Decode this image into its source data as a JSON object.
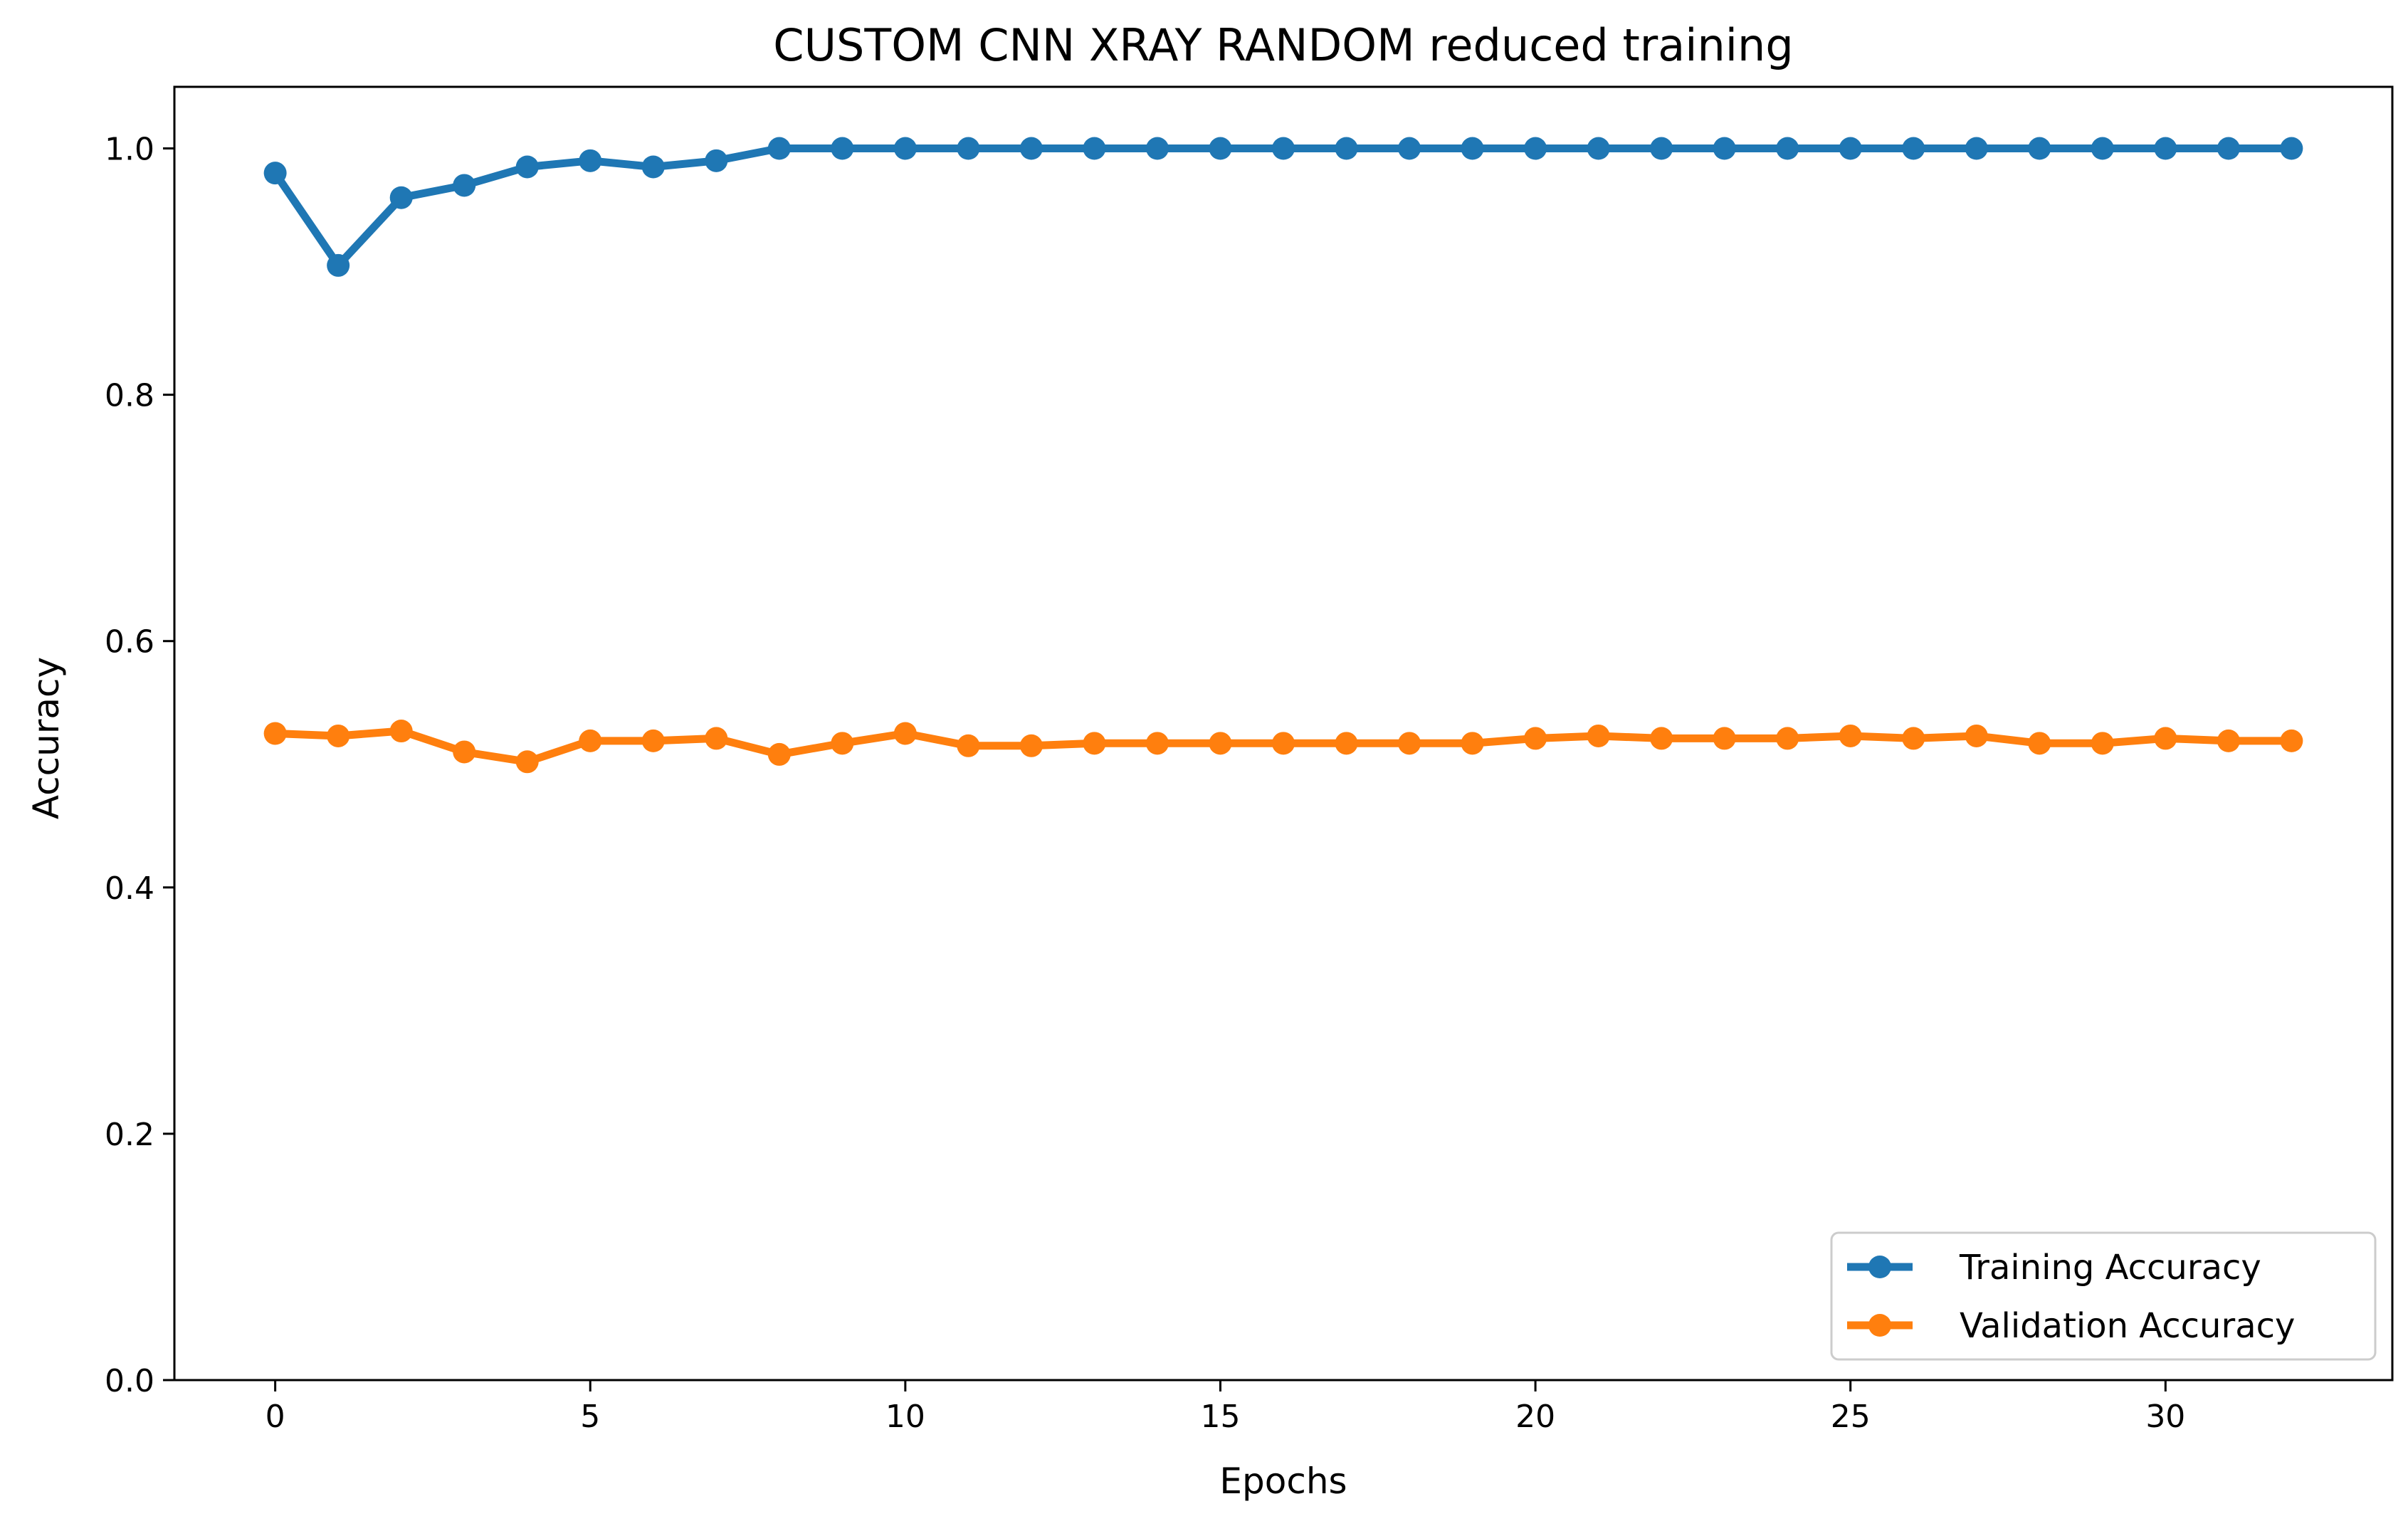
{
  "chart_data": {
    "type": "line",
    "title": "CUSTOM CNN XRAY RANDOM reduced training",
    "xlabel": "Epochs",
    "ylabel": "Accuracy",
    "xlim": [
      -1.6,
      33.6
    ],
    "ylim": [
      0.0,
      1.05
    ],
    "xticks": [
      0,
      5,
      10,
      15,
      20,
      25,
      30
    ],
    "yticks": [
      0.0,
      0.2,
      0.4,
      0.6,
      0.8,
      1.0
    ],
    "xtick_labels": [
      "0",
      "5",
      "10",
      "15",
      "20",
      "25",
      "30"
    ],
    "ytick_labels": [
      "0.0",
      "0.2",
      "0.4",
      "0.6",
      "0.8",
      "1.0"
    ],
    "grid": false,
    "legend_position": "lower-right",
    "x": [
      0,
      1,
      2,
      3,
      4,
      5,
      6,
      7,
      8,
      9,
      10,
      11,
      12,
      13,
      14,
      15,
      16,
      17,
      18,
      19,
      20,
      21,
      22,
      23,
      24,
      25,
      26,
      27,
      28,
      29,
      30,
      31,
      32
    ],
    "series": [
      {
        "name": "Training Accuracy",
        "color": "#1f77b4",
        "marker": "circle",
        "values": [
          0.98,
          0.905,
          0.96,
          0.97,
          0.985,
          0.99,
          0.985,
          0.99,
          1.0,
          1.0,
          1.0,
          1.0,
          1.0,
          1.0,
          1.0,
          1.0,
          1.0,
          1.0,
          1.0,
          1.0,
          1.0,
          1.0,
          1.0,
          1.0,
          1.0,
          1.0,
          1.0,
          1.0,
          1.0,
          1.0,
          1.0,
          1.0,
          1.0
        ]
      },
      {
        "name": "Validation Accuracy",
        "color": "#ff7f0e",
        "marker": "circle",
        "values": [
          0.525,
          0.523,
          0.527,
          0.51,
          0.502,
          0.519,
          0.519,
          0.521,
          0.508,
          0.517,
          0.525,
          0.515,
          0.515,
          0.517,
          0.517,
          0.517,
          0.517,
          0.517,
          0.517,
          0.517,
          0.521,
          0.523,
          0.521,
          0.521,
          0.521,
          0.523,
          0.521,
          0.523,
          0.517,
          0.517,
          0.521,
          0.519,
          0.519
        ]
      }
    ]
  }
}
